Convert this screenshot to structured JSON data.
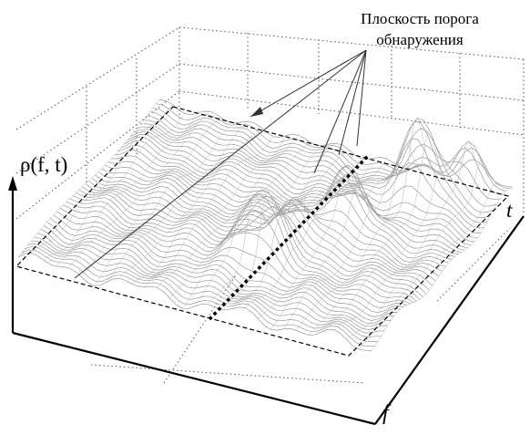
{
  "annotation": {
    "line1": "Плоскость порога",
    "line2": "обнаружения"
  },
  "axes": {
    "z_label": "ρ(f, t)",
    "t_label": "t",
    "f_label": "f"
  },
  "colors": {
    "background": "#ffffff",
    "surface_light": "#c8c8c8",
    "surface_dark": "#3c3c3c",
    "axis": "#000000"
  }
}
